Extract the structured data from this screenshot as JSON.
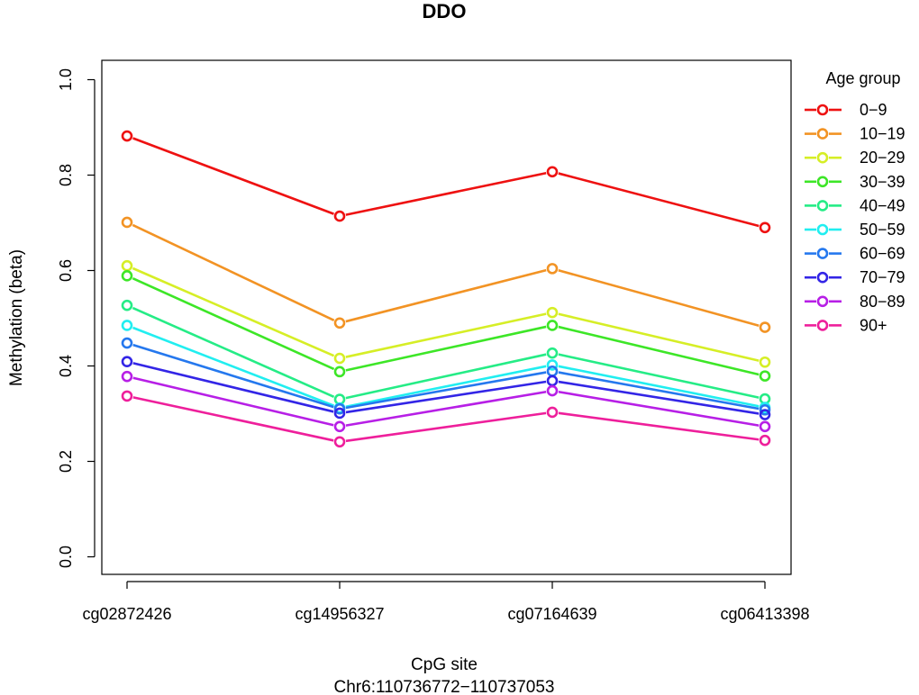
{
  "chart_data": {
    "type": "line",
    "title": "DDO",
    "xlabel": "CpG site",
    "xlabel2": "Chr6:110736772−110737053",
    "ylabel": "Methylation (beta)",
    "categories": [
      "cg02872426",
      "cg14956327",
      "cg07164639",
      "cg06413398"
    ],
    "ylim": [
      0,
      1
    ],
    "yticks": [
      "0.0",
      "0.2",
      "0.4",
      "0.6",
      "0.8",
      "1.0"
    ],
    "ytick_values": [
      0,
      0.2,
      0.4,
      0.6,
      0.8,
      1.0
    ],
    "legend_title": "Age group",
    "legend_position": "right",
    "grid": false,
    "series": [
      {
        "name": "0−9",
        "color": "#ee1111",
        "values": [
          0.882,
          0.714,
          0.807,
          0.69
        ]
      },
      {
        "name": "10−19",
        "color": "#f29324",
        "values": [
          0.701,
          0.49,
          0.604,
          0.481
        ]
      },
      {
        "name": "20−29",
        "color": "#d6ee26",
        "values": [
          0.61,
          0.416,
          0.512,
          0.408
        ]
      },
      {
        "name": "30−39",
        "color": "#3de627",
        "values": [
          0.589,
          0.388,
          0.485,
          0.379
        ]
      },
      {
        "name": "40−49",
        "color": "#25ec86",
        "values": [
          0.527,
          0.33,
          0.427,
          0.331
        ]
      },
      {
        "name": "50−59",
        "color": "#21eef0",
        "values": [
          0.485,
          0.312,
          0.402,
          0.313
        ]
      },
      {
        "name": "60−69",
        "color": "#2578ee",
        "values": [
          0.448,
          0.31,
          0.389,
          0.308
        ]
      },
      {
        "name": "70−79",
        "color": "#3325e6",
        "values": [
          0.409,
          0.301,
          0.369,
          0.298
        ]
      },
      {
        "name": "80−89",
        "color": "#b71fe6",
        "values": [
          0.378,
          0.273,
          0.348,
          0.273
        ]
      },
      {
        "name": "90+",
        "color": "#ee1f9b",
        "values": [
          0.337,
          0.241,
          0.303,
          0.244
        ]
      }
    ]
  }
}
